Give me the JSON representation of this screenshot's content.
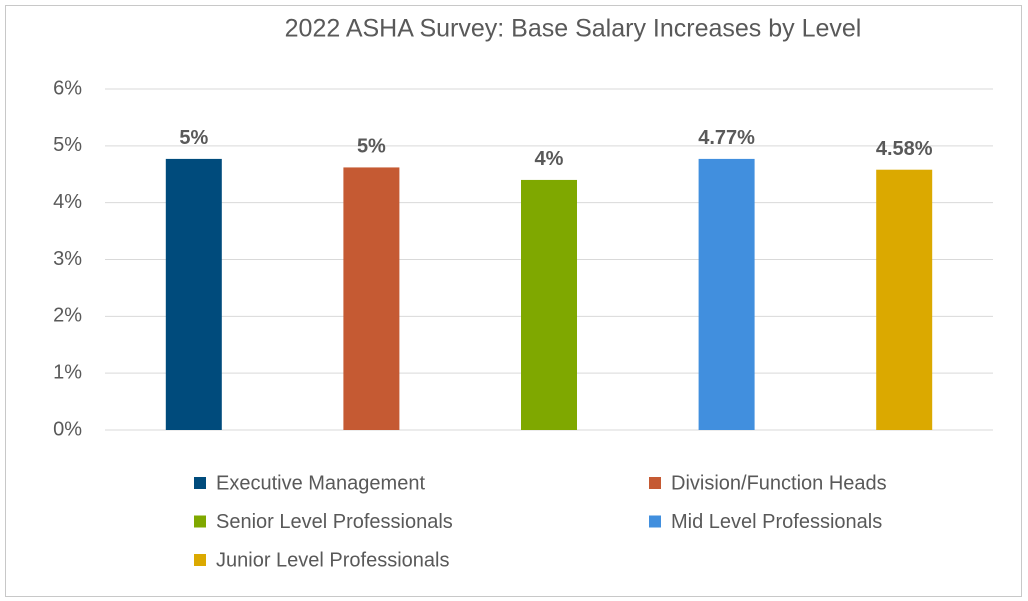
{
  "chart_data": {
    "type": "bar",
    "title": "2022 ASHA Survey: Base Salary Increases by Level",
    "categories": [
      null
    ],
    "series": [
      {
        "name": "Executive Management",
        "color": "#004b7c",
        "values": [
          4.77
        ],
        "value_labels": [
          "5%"
        ]
      },
      {
        "name": "Division/Function Heads",
        "color": "#c55a33",
        "values": [
          4.62
        ],
        "value_labels": [
          "5%"
        ]
      },
      {
        "name": "Senior Level Professionals",
        "color": "#7fa800",
        "values": [
          4.4
        ],
        "value_labels": [
          "4%"
        ]
      },
      {
        "name": "Mid Level Professionals",
        "color": "#418fde",
        "values": [
          4.77
        ],
        "value_labels": [
          "4.77%"
        ]
      },
      {
        "name": "Junior Level Professionals",
        "color": "#dba900",
        "values": [
          4.58
        ],
        "value_labels": [
          "4.58%"
        ]
      }
    ],
    "ylim": [
      0,
      6
    ],
    "yticks": [
      {
        "value": 0,
        "label": "0%"
      },
      {
        "value": 1,
        "label": "1%"
      },
      {
        "value": 2,
        "label": "2%"
      },
      {
        "value": 3,
        "label": "3%"
      },
      {
        "value": 4,
        "label": "4%"
      },
      {
        "value": 5,
        "label": "5%"
      },
      {
        "value": 6,
        "label": "6%"
      }
    ],
    "grid": true,
    "legend": "bottom"
  }
}
